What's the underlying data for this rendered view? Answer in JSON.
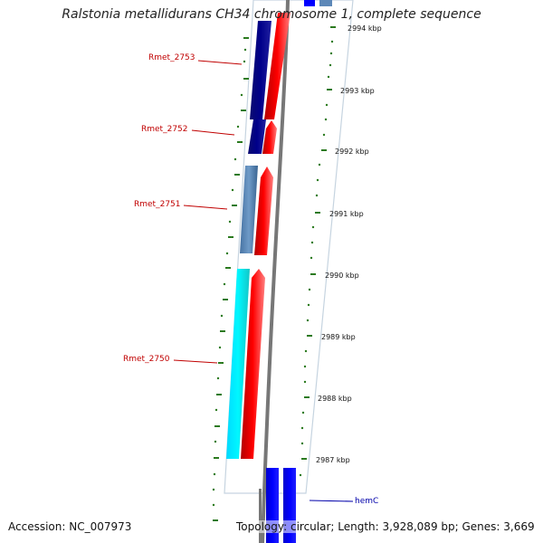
{
  "title": "Ralstonia metallidurans CH34 chromosome 1, complete sequence",
  "footer": {
    "accession": "Accession: NC_007973",
    "topology": "Topology: circular; Length: 3,928,089 bp; Genes: 3,669"
  },
  "colors": {
    "forward_gene": "#ff0000",
    "reverse_dark": "#0a0a7a",
    "reverse_steel": "#5d88b8",
    "reverse_cyan": "#00f0ff",
    "reverse_blue": "#0000ff",
    "tick_green": "#2b7a1f",
    "backbone": "#777777",
    "highlight_outline": "#c6d4e0"
  },
  "icons": {
    "genome_backbone": "curved-gray-backbone-line",
    "gene_arrow": "gene-arrow-shape"
  },
  "coordinate_ticks": [
    {
      "label": "2994 kbp"
    },
    {
      "label": "2993 kbp"
    },
    {
      "label": "2992 kbp"
    },
    {
      "label": "2991 kbp"
    },
    {
      "label": "2990 kbp"
    },
    {
      "label": "2989 kbp"
    },
    {
      "label": "2988 kbp"
    },
    {
      "label": "2987 kbp"
    }
  ],
  "gene_labels": [
    {
      "label": "Rmet_2753",
      "color": "#c00000"
    },
    {
      "label": "Rmet_2752",
      "color": "#c00000"
    },
    {
      "label": "Rmet_2751",
      "color": "#c00000"
    },
    {
      "label": "Rmet_2750",
      "color": "#c00000"
    },
    {
      "label": "hemC",
      "color": "#0000aa"
    }
  ]
}
